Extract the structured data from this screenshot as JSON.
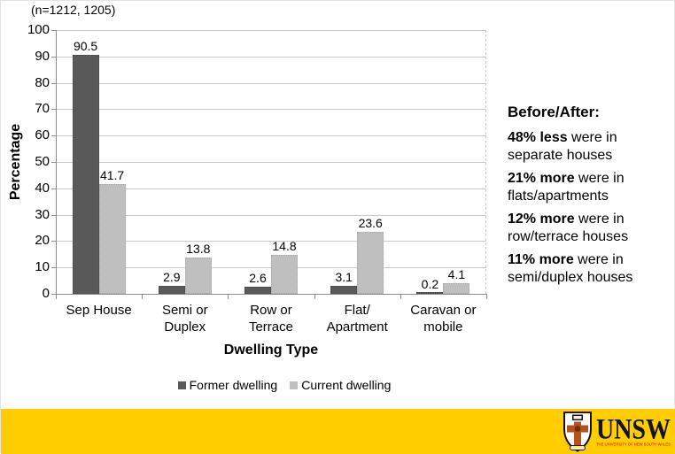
{
  "note": "(n=1212, 1205)",
  "chart_data": {
    "type": "bar",
    "title": "",
    "categories": [
      "Sep House",
      "Semi or\nDuplex",
      "Row or\nTerrace",
      "Flat/\nApartment",
      "Caravan or\nmobile"
    ],
    "series": [
      {
        "name": "Former dwelling",
        "color": "#595959",
        "border": "#474747",
        "values": [
          90.5,
          2.9,
          2.6,
          3.1,
          0.2
        ]
      },
      {
        "name": "Current dwelling",
        "color": "#bfbfbf",
        "border": "#a6a6a6",
        "values": [
          41.7,
          13.8,
          14.8,
          23.6,
          4.1
        ]
      }
    ],
    "xlabel": "Dwelling Type",
    "ylabel": "Percentage",
    "ylim": [
      0,
      100
    ],
    "ytick_step": 10,
    "grid": true,
    "legend_position": "bottom"
  },
  "annotations": {
    "heading": "Before/After:",
    "items": [
      {
        "bold": "48% less",
        "text": " were in separate houses"
      },
      {
        "bold": "21% more",
        "text": " were in flats/apartments"
      },
      {
        "bold": "12% more",
        "text": " were in row/terrace houses"
      },
      {
        "bold": "11% more",
        "text": " were in semi/duplex houses"
      }
    ]
  },
  "footer": {
    "bar_color": "#ffcd00",
    "brand": "UNSW",
    "tagline": "THE UNIVERSITY OF NEW SOUTH WALES"
  }
}
